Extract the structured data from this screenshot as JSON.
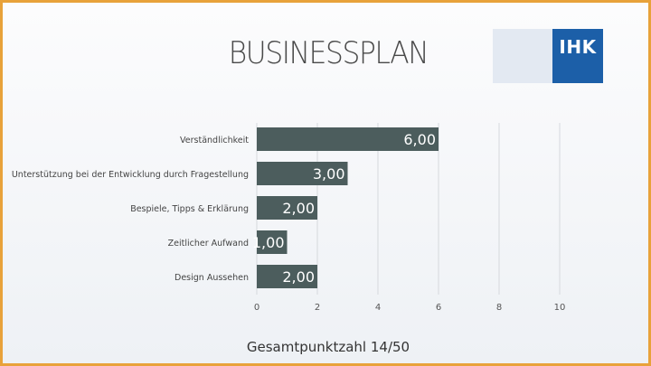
{
  "slide": {
    "title": "BUSINESSPLAN",
    "logo_text": "IHK",
    "footer": "Gesamtpunktzahl 14/50"
  },
  "colors": {
    "bar": "#4c5d5d",
    "bar_label": "#ffffff",
    "grid": "#d6d9dd",
    "frame": "#e8a23a",
    "logo_blue": "#1c5fa8"
  },
  "chart_data": {
    "type": "bar",
    "orientation": "horizontal",
    "categories": [
      "Verständlichkeit",
      "Unterstützung bei der Entwicklung durch Fragestellung",
      "Bespiele, Tipps & Erklärung",
      "Zeitlicher Aufwand",
      "Design Aussehen"
    ],
    "values": [
      6,
      3,
      2,
      1,
      2
    ],
    "data_labels": [
      "6,00",
      "3,00",
      "2,00",
      "1,00",
      "2,00"
    ],
    "xlim": [
      0,
      10
    ],
    "xticks": [
      0,
      2,
      4,
      6,
      8,
      10
    ],
    "grid": true
  }
}
